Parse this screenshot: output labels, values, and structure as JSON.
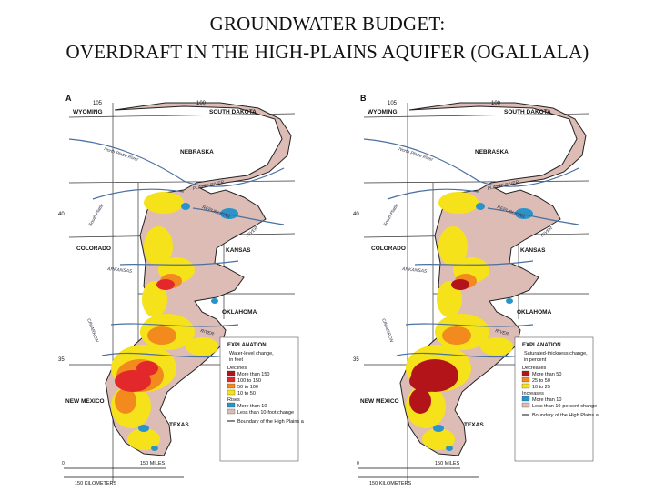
{
  "title": {
    "line1": "GROUNDWATER BUDGET:",
    "line2": "OVERDRAFT IN THE HIGH-PLAINS AQUIFER (OGALLALA)"
  },
  "map_a": {
    "panel_letter": "A",
    "lon_105": "105",
    "lon_100": "100",
    "lat_40": "40",
    "lat_35": "35",
    "states": {
      "wyoming": "WYOMING",
      "south_dakota": "SOUTH DAKOTA",
      "nebraska": "NEBRASKA",
      "colorado": "COLORADO",
      "kansas": "KANSAS",
      "oklahoma": "OKLAHOMA",
      "new_mexico": "NEW MEXICO",
      "texas": "TEXAS"
    },
    "rivers": {
      "north_platte": "North Platte River",
      "platte": "PLATTE RIVER",
      "south_platte": "South Platte",
      "republican": "REPUBLICAN",
      "smoky_hill": "RIVER",
      "arkansas": "ARKANSAS",
      "cimarron": "CIMARRON",
      "red": "RIVER"
    },
    "legend": {
      "heading": "EXPLANATION",
      "subheading": "Water-level change, in feet",
      "group1": "Declines",
      "items1": [
        {
          "label": "More than 150",
          "color": "#b3141a"
        },
        {
          "label": "100 to 150",
          "color": "#e2282a"
        },
        {
          "label": "50 to 100",
          "color": "#f28a1e"
        },
        {
          "label": "10 to 50",
          "color": "#f6e21b"
        }
      ],
      "group2": "Rises",
      "items2": [
        {
          "label": "More than 10",
          "color": "#2a93c9"
        }
      ],
      "item_less": {
        "label": "Less than 10-foot change",
        "color": "#dcbcb5"
      },
      "boundary": "Boundary of the High Plains aquifer"
    },
    "scale": {
      "miles": "150 MILES",
      "km": "150 KILOMETERS",
      "zero": "0"
    }
  },
  "map_b": {
    "panel_letter": "B",
    "lon_105": "105",
    "lon_100": "100",
    "lat_40": "40",
    "lat_35": "35",
    "states": {
      "wyoming": "WYOMING",
      "south_dakota": "SOUTH DAKOTA",
      "nebraska": "NEBRASKA",
      "colorado": "COLORADO",
      "kansas": "KANSAS",
      "oklahoma": "OKLAHOMA",
      "new_mexico": "NEW MEXICO",
      "texas": "TEXAS"
    },
    "rivers": {
      "north_platte": "North Platte River",
      "platte": "PLATTE RIVER",
      "south_platte": "South Platte",
      "republican": "REPUBLICAN",
      "smoky_hill": "RIVER",
      "arkansas": "ARKANSAS",
      "cimarron": "CIMARRON",
      "red": "RIVER"
    },
    "legend": {
      "heading": "EXPLANATION",
      "subheading": "Saturated-thickness change, in percent",
      "group1": "Decreases",
      "items1": [
        {
          "label": "More than 50",
          "color": "#b3141a"
        },
        {
          "label": "25 to 50",
          "color": "#f28a1e"
        },
        {
          "label": "10 to 25",
          "color": "#f6e21b"
        }
      ],
      "group2": "Increases",
      "items2": [
        {
          "label": "More than 10",
          "color": "#2a93c9"
        }
      ],
      "item_less": {
        "label": "Less than 10-percent change",
        "color": "#dcbcb5"
      },
      "boundary": "Boundary of the High Plains aquifer"
    },
    "scale": {
      "miles": "150 MILES",
      "km": "150 KILOMETERS",
      "zero": "0"
    }
  },
  "colors": {
    "aquifer_base": "#dcbcb5",
    "decline_severe": "#b3141a",
    "decline_high": "#e2282a",
    "decline_mid": "#f28a1e",
    "decline_low": "#f6e21b",
    "rise": "#2a93c9",
    "river": "#4a6fa0"
  }
}
